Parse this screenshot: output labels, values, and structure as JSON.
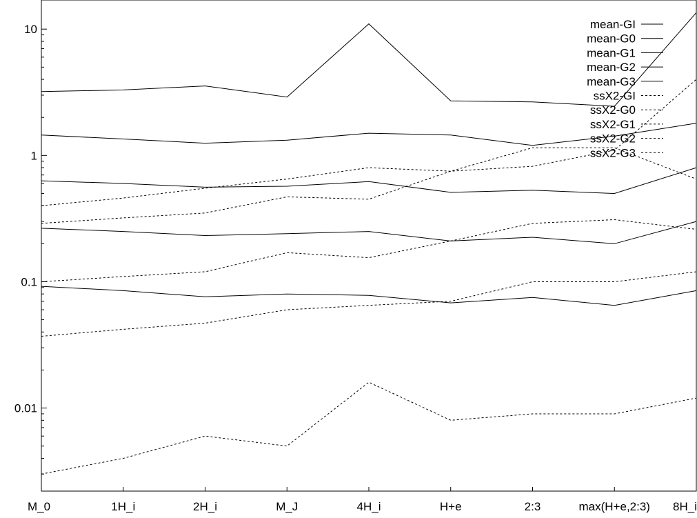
{
  "chart_data": {
    "type": "line",
    "title": "",
    "xlabel": "",
    "ylabel": "",
    "y_scale": "log",
    "ylim": [
      0.0022,
      17
    ],
    "grid": false,
    "legend_placement": "top-right",
    "categories": [
      "M_0",
      "1H_i",
      "2H_i",
      "M_J",
      "4H_i",
      "H+e",
      "2:3",
      "max(H+e,2:3)",
      "8H_i"
    ],
    "y_ticks": [
      {
        "value": 0.01,
        "label": "0.01"
      },
      {
        "value": 0.1,
        "label": "0.1"
      },
      {
        "value": 1,
        "label": "1"
      },
      {
        "value": 10,
        "label": "10"
      }
    ],
    "series": [
      {
        "name": "mean-GI",
        "style": "solid",
        "values": [
          3.2,
          3.3,
          3.55,
          2.9,
          11,
          2.7,
          2.65,
          2.45,
          13.5
        ]
      },
      {
        "name": "mean-G0",
        "style": "solid",
        "values": [
          1.45,
          1.35,
          1.25,
          1.32,
          1.5,
          1.45,
          1.2,
          1.42,
          1.8
        ]
      },
      {
        "name": "mean-G1",
        "style": "solid",
        "values": [
          0.63,
          0.6,
          0.56,
          0.57,
          0.62,
          0.51,
          0.53,
          0.5,
          0.8
        ]
      },
      {
        "name": "mean-G2",
        "style": "solid",
        "values": [
          0.265,
          0.25,
          0.232,
          0.24,
          0.25,
          0.21,
          0.225,
          0.2,
          0.3
        ]
      },
      {
        "name": "mean-G3",
        "style": "solid",
        "values": [
          0.092,
          0.085,
          0.076,
          0.08,
          0.078,
          0.068,
          0.075,
          0.065,
          0.085
        ]
      },
      {
        "name": "ssX2-GI",
        "style": "dashed",
        "values": [
          0.4,
          0.46,
          0.55,
          0.65,
          0.8,
          0.75,
          0.82,
          1.1,
          4
        ]
      },
      {
        "name": "ssX2-G0",
        "style": "dashed",
        "values": [
          0.29,
          0.32,
          0.35,
          0.47,
          0.45,
          0.75,
          1.15,
          1.15,
          0.65
        ]
      },
      {
        "name": "ssX2-G1",
        "style": "dashed",
        "values": [
          0.1,
          0.11,
          0.12,
          0.17,
          0.155,
          0.21,
          0.29,
          0.31,
          0.26
        ]
      },
      {
        "name": "ssX2-G2",
        "style": "dashed",
        "values": [
          0.037,
          0.042,
          0.047,
          0.06,
          0.065,
          0.07,
          0.1,
          0.1,
          0.12
        ]
      },
      {
        "name": "ssX2-G3",
        "style": "dashed",
        "values": [
          0.003,
          0.004,
          0.006,
          0.005,
          0.016,
          0.008,
          0.009,
          0.009,
          0.012
        ]
      }
    ]
  }
}
